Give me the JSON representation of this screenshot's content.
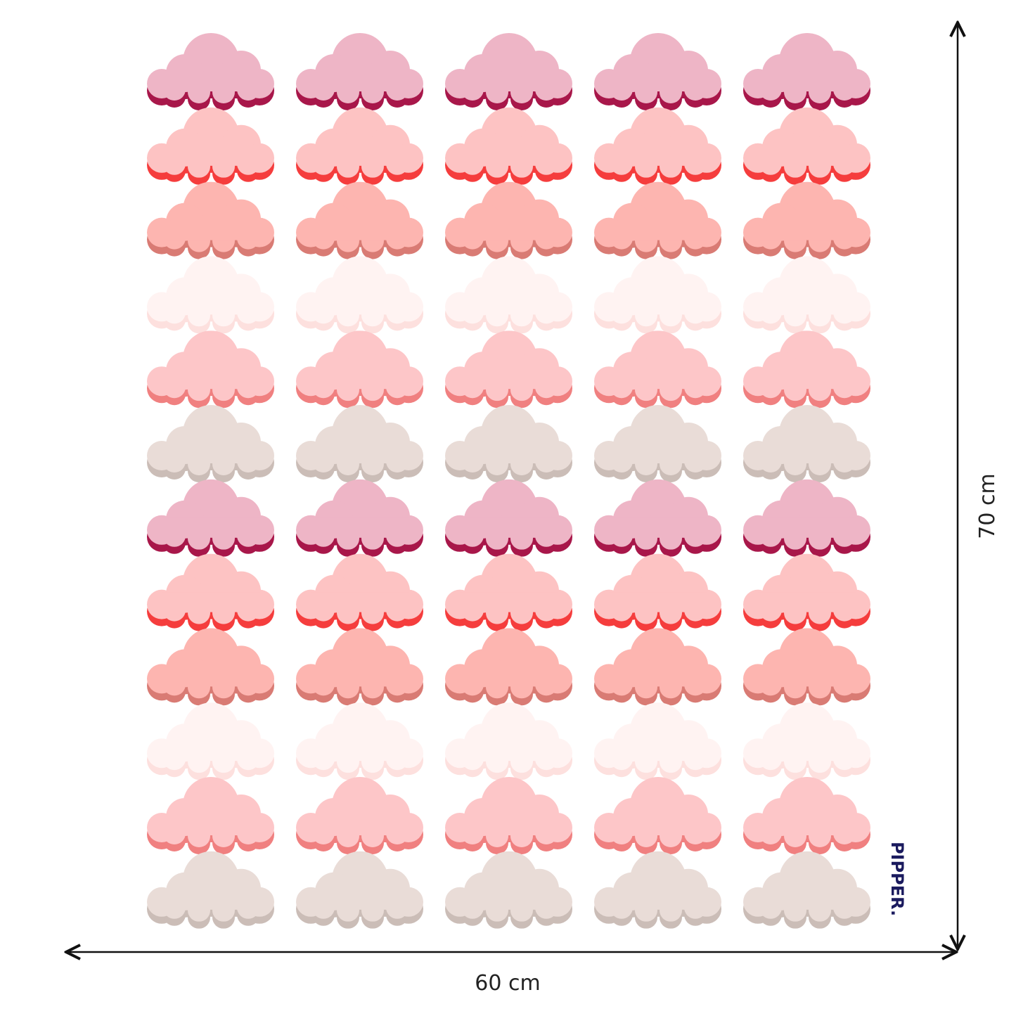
{
  "dimensions": {
    "width": "60 cm",
    "height": "70 cm"
  },
  "brand": "PIPPER."
}
